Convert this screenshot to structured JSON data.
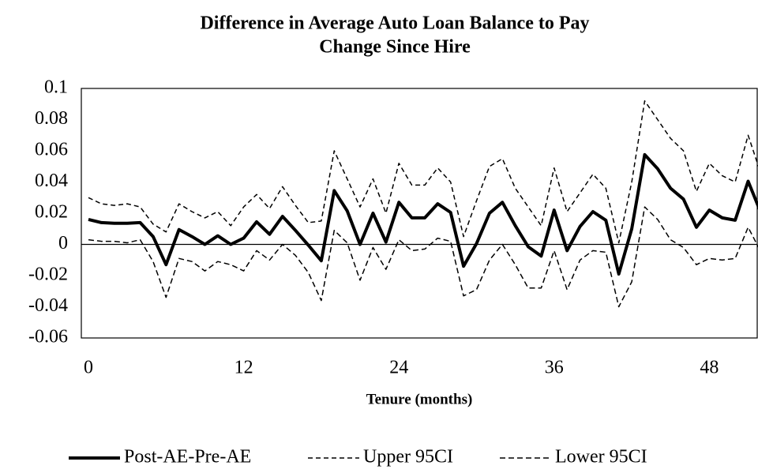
{
  "chart_data": {
    "type": "line",
    "title": [
      "Difference in Average Auto Loan Balance to Pay",
      "Change Since Hire"
    ],
    "x_label": "Tenure (months)",
    "x": [
      0,
      1,
      2,
      3,
      4,
      5,
      6,
      7,
      8,
      9,
      10,
      11,
      12,
      13,
      14,
      15,
      16,
      17,
      18,
      19,
      20,
      21,
      22,
      23,
      24,
      25,
      26,
      27,
      28,
      29,
      30,
      31,
      32,
      33,
      34,
      35,
      36,
      37,
      38,
      39,
      40,
      41,
      42,
      43,
      44,
      45,
      46,
      47,
      48,
      49,
      50,
      51,
      52
    ],
    "series": [
      {
        "name": "Post-AE-Pre-AE",
        "color": "#000000",
        "width": 4,
        "dash": "none",
        "values": [
          0.016,
          0.014,
          0.0135,
          0.0135,
          0.014,
          0.005,
          -0.013,
          0.0095,
          0.005,
          0,
          0.0055,
          0,
          0.004,
          0.0145,
          0.0065,
          0.018,
          0.009,
          -0.0005,
          -0.0105,
          0.0345,
          0.0215,
          0,
          0.02,
          0.0015,
          0.027,
          0.017,
          0.017,
          0.026,
          0.0205,
          -0.014,
          0.0005,
          0.02,
          0.027,
          0.012,
          -0.0015,
          -0.0075,
          0.022,
          -0.004,
          0.0115,
          0.021,
          0.0155,
          -0.019,
          0.01,
          0.0575,
          0.0485,
          0.036,
          0.029,
          0.011,
          0.022,
          0.017,
          0.0155,
          0.0405,
          0.02
        ]
      },
      {
        "name": "Upper 95CI",
        "color": "#000000",
        "width": 1.5,
        "dash": "6,4",
        "values": [
          0.03,
          0.026,
          0.025,
          0.026,
          0.024,
          0.013,
          0.008,
          0.026,
          0.021,
          0.017,
          0.021,
          0.012,
          0.024,
          0.032,
          0.023,
          0.037,
          0.025,
          0.014,
          0.015,
          0.06,
          0.042,
          0.024,
          0.042,
          0.02,
          0.052,
          0.038,
          0.038,
          0.049,
          0.04,
          0.005,
          0.028,
          0.05,
          0.055,
          0.036,
          0.024,
          0.012,
          0.049,
          0.021,
          0.033,
          0.045,
          0.036,
          0.001,
          0.04,
          0.092,
          0.08,
          0.068,
          0.06,
          0.034,
          0.052,
          0.044,
          0.04,
          0.07,
          0.045
        ]
      },
      {
        "name": "Lower 95CI",
        "color": "#000000",
        "width": 1.5,
        "dash": "7,4",
        "values": [
          0.003,
          0.002,
          0.002,
          0.001,
          0.003,
          -0.011,
          -0.034,
          -0.009,
          -0.011,
          -0.017,
          -0.011,
          -0.013,
          -0.017,
          -0.004,
          -0.01,
          0,
          -0.007,
          -0.018,
          -0.036,
          0.009,
          0.001,
          -0.023,
          -0.002,
          -0.016,
          0.003,
          -0.004,
          -0.003,
          0.004,
          0.002,
          -0.033,
          -0.029,
          -0.01,
          0,
          -0.013,
          -0.028,
          -0.028,
          -0.004,
          -0.029,
          -0.01,
          -0.004,
          -0.005,
          -0.04,
          -0.024,
          0.024,
          0.016,
          0.003,
          -0.002,
          -0.013,
          -0.009,
          -0.01,
          -0.009,
          0.011,
          -0.005
        ]
      }
    ],
    "xlim": [
      -0.55,
      51.7
    ],
    "xticks": [
      0,
      12,
      24,
      36,
      48
    ],
    "ylim": [
      -0.06,
      0.1
    ],
    "yticks": [
      0.1,
      0.08,
      0.06,
      0.04,
      0.02,
      0,
      -0.02,
      -0.04,
      -0.06
    ],
    "legend": "bottom"
  }
}
